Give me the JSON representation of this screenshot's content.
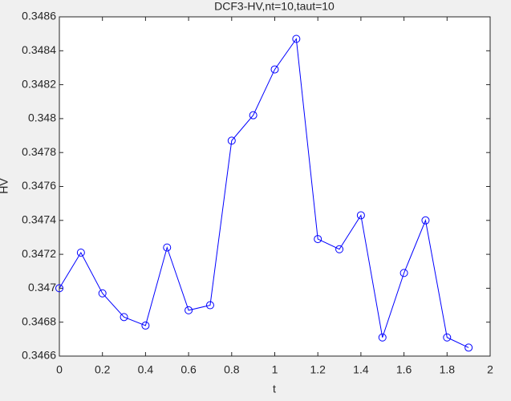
{
  "chart_data": {
    "type": "line",
    "title": "DCF3-HV,nt=10,taut=10",
    "x_label": "t",
    "y_label": "HV",
    "x": [
      0,
      0.1,
      0.2,
      0.3,
      0.4,
      0.5,
      0.6,
      0.7,
      0.8,
      0.9,
      1.0,
      1.1,
      1.2,
      1.3,
      1.4,
      1.5,
      1.6,
      1.7,
      1.8,
      1.9
    ],
    "series": [
      {
        "name": "HV",
        "color": "#0000ff",
        "marker": "circle",
        "values": [
          0.347,
          0.34721,
          0.34697,
          0.34683,
          0.34678,
          0.34724,
          0.34687,
          0.3469,
          0.34787,
          0.34802,
          0.34829,
          0.34847,
          0.34729,
          0.34723,
          0.34743,
          0.34671,
          0.34709,
          0.3474,
          0.34671,
          0.34665
        ]
      }
    ],
    "xlim": [
      0,
      2
    ],
    "xticks": [
      0,
      0.2,
      0.4,
      0.6,
      0.8,
      1,
      1.2,
      1.4,
      1.6,
      1.8,
      2
    ],
    "ylim": [
      0.3466,
      0.3486
    ],
    "yticks": [
      0.3466,
      0.3468,
      0.347,
      0.3472,
      0.3474,
      0.3476,
      0.3478,
      0.348,
      0.3482,
      0.3484,
      0.3486
    ],
    "grid": false,
    "legend": false
  }
}
